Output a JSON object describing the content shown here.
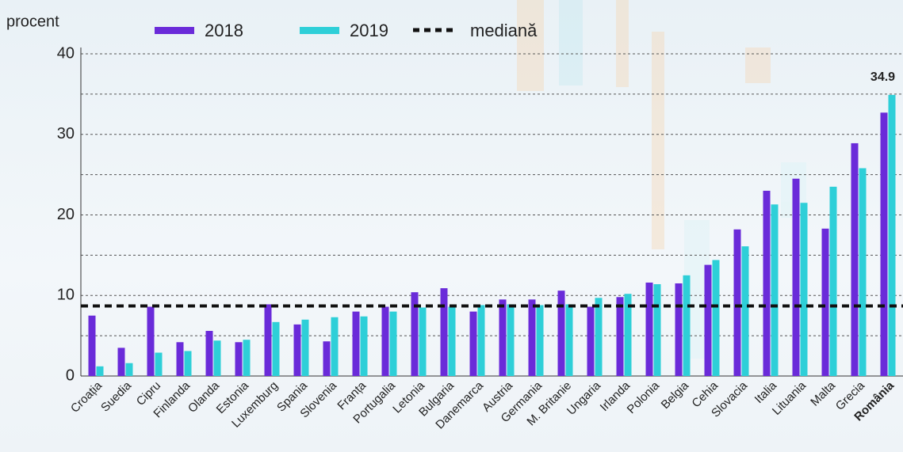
{
  "chart_data": {
    "type": "bar",
    "y_label": "procent",
    "categories": [
      "Croația",
      "Suedia",
      "Cipru",
      "Finlanda",
      "Olanda",
      "Estonia",
      "Luxemburg",
      "Spania",
      "Slovenia",
      "Franța",
      "Portugalia",
      "Letonia",
      "Bulgaria",
      "Danemarca",
      "Austria",
      "Germania",
      "M. Britanie",
      "Ungaria",
      "Irlanda",
      "Polonia",
      "Belgia",
      "Cehia",
      "Slovacia",
      "Italia",
      "Lituania",
      "Malta",
      "Grecia",
      "România"
    ],
    "series": [
      {
        "name": "2018",
        "color": "#6a2bd9",
        "values": [
          7.5,
          3.5,
          8.6,
          4.2,
          5.6,
          4.2,
          8.9,
          6.4,
          4.3,
          8.0,
          8.6,
          10.4,
          10.9,
          8.0,
          9.5,
          9.5,
          10.6,
          8.6,
          9.8,
          11.6,
          11.5,
          13.8,
          18.2,
          23.0,
          24.5,
          18.3,
          28.9,
          32.7
        ]
      },
      {
        "name": "2019",
        "color": "#2ecfd8",
        "values": [
          1.2,
          1.6,
          2.9,
          3.1,
          4.4,
          4.5,
          6.7,
          7.0,
          7.3,
          7.4,
          8.0,
          8.5,
          8.6,
          8.8,
          8.9,
          8.8,
          8.9,
          9.7,
          10.2,
          11.4,
          12.5,
          14.4,
          16.1,
          21.3,
          21.5,
          23.5,
          25.8,
          34.9
        ]
      }
    ],
    "median": {
      "name": "mediană",
      "value": 8.7,
      "color": "#111111"
    },
    "ylim": [
      0,
      40
    ],
    "yticks": [
      0,
      10,
      20,
      30,
      40
    ],
    "minor_grid": [
      5,
      15,
      25,
      35
    ],
    "grid": true
  }
}
